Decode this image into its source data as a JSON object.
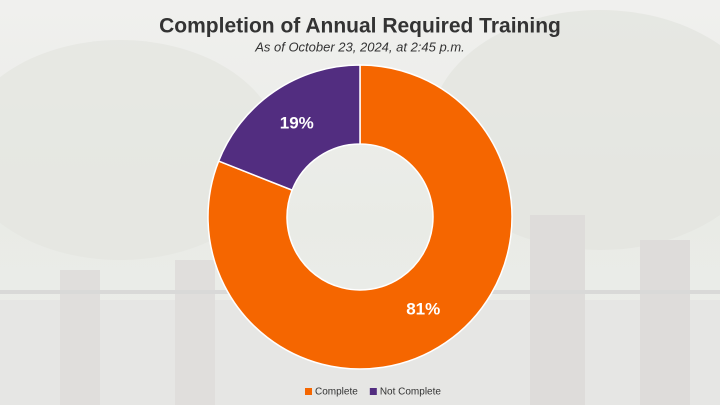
{
  "chart_data": {
    "type": "pie",
    "donut": true,
    "title": "Completion of Annual Required Training",
    "subtitle": "As of October 23, 2024, at 2:45 p.m.",
    "categories": [
      "Complete",
      "Not Complete"
    ],
    "values": [
      81,
      19
    ],
    "value_labels": [
      "81%",
      "19%"
    ],
    "colors": [
      "#f56600",
      "#522d80"
    ],
    "legend": "bottom"
  }
}
